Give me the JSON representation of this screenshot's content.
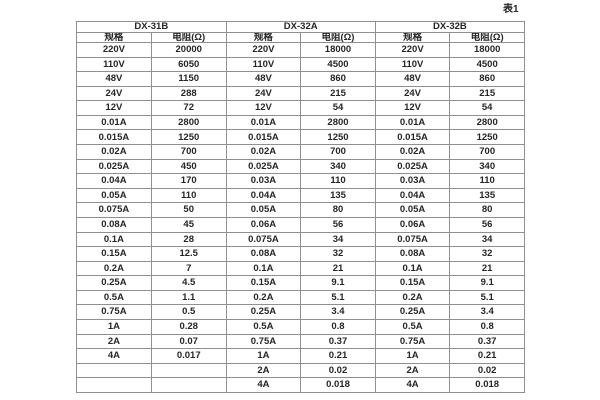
{
  "page": {
    "table_caption": "表1"
  },
  "table": {
    "groups": [
      {
        "label": "DX-31B"
      },
      {
        "label": "DX-32A"
      },
      {
        "label": "DX-32B"
      }
    ],
    "sub_headers": {
      "spec": "规格",
      "resistance": "电阻(Ω)"
    },
    "rows": [
      [
        "220V",
        "20000",
        "220V",
        "18000",
        "220V",
        "18000"
      ],
      [
        "110V",
        "6050",
        "110V",
        "4500",
        "110V",
        "4500"
      ],
      [
        "48V",
        "1150",
        "48V",
        "860",
        "48V",
        "860"
      ],
      [
        "24V",
        "288",
        "24V",
        "215",
        "24V",
        "215"
      ],
      [
        "12V",
        "72",
        "12V",
        "54",
        "12V",
        "54"
      ],
      [
        "0.01A",
        "2800",
        "0.01A",
        "2800",
        "0.01A",
        "2800"
      ],
      [
        "0.015A",
        "1250",
        "0.015A",
        "1250",
        "0.015A",
        "1250"
      ],
      [
        "0.02A",
        "700",
        "0.02A",
        "700",
        "0.02A",
        "700"
      ],
      [
        "0.025A",
        "450",
        "0.025A",
        "340",
        "0.025A",
        "340"
      ],
      [
        "0.04A",
        "170",
        "0.03A",
        "110",
        "0.03A",
        "110"
      ],
      [
        "0.05A",
        "110",
        "0.04A",
        "135",
        "0.04A",
        "135"
      ],
      [
        "0.075A",
        "50",
        "0.05A",
        "80",
        "0.05A",
        "80"
      ],
      [
        "0.08A",
        "45",
        "0.06A",
        "56",
        "0.06A",
        "56"
      ],
      [
        "0.1A",
        "28",
        "0.075A",
        "34",
        "0.075A",
        "34"
      ],
      [
        "0.15A",
        "12.5",
        "0.08A",
        "32",
        "0.08A",
        "32"
      ],
      [
        "0.2A",
        "7",
        "0.1A",
        "21",
        "0.1A",
        "21"
      ],
      [
        "0.25A",
        "4.5",
        "0.15A",
        "9.1",
        "0.15A",
        "9.1"
      ],
      [
        "0.5A",
        "1.1",
        "0.2A",
        "5.1",
        "0.2A",
        "5.1"
      ],
      [
        "0.75A",
        "0.5",
        "0.25A",
        "3.4",
        "0.25A",
        "3.4"
      ],
      [
        "1A",
        "0.28",
        "0.5A",
        "0.8",
        "0.5A",
        "0.8"
      ],
      [
        "2A",
        "0.07",
        "0.75A",
        "0.37",
        "0.75A",
        "0.37"
      ],
      [
        "4A",
        "0.017",
        "1A",
        "0.21",
        "1A",
        "0.21"
      ],
      [
        "",
        "",
        "2A",
        "0.02",
        "2A",
        "0.02"
      ],
      [
        "",
        "",
        "4A",
        "0.018",
        "4A",
        "0.018"
      ]
    ]
  }
}
